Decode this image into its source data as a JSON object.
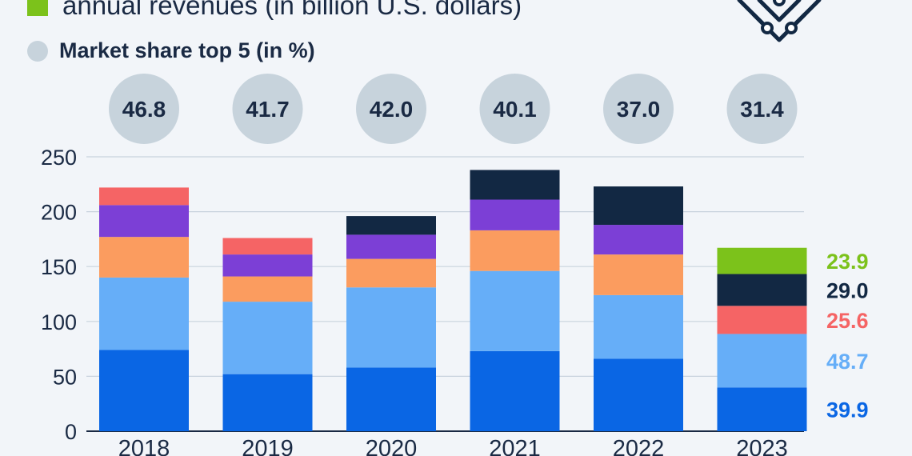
{
  "legend": {
    "revenues_label": "annual revenues (in billion U.S. dollars)",
    "share_label": "Market share top 5 (in %)",
    "revenues_color": "#7cc21b",
    "share_color": "#c7d3dc"
  },
  "logo_icon": "chip-circuit-icon",
  "chart_data": {
    "type": "bar",
    "stacked": true,
    "categories": [
      "2018",
      "2019",
      "2020",
      "2021",
      "2022",
      "2023"
    ],
    "ylim": [
      0,
      250
    ],
    "yticks": [
      0,
      50,
      100,
      150,
      200,
      250
    ],
    "grid": true,
    "series": [
      {
        "color": "#0a66e4",
        "values": [
          74,
          52,
          58,
          73,
          66,
          39.9
        ]
      },
      {
        "color": "#66aef8",
        "values": [
          66,
          66,
          73,
          73,
          58,
          48.7
        ]
      },
      {
        "color": "#fb9c5f",
        "values": [
          37,
          23,
          26,
          37,
          37,
          0
        ]
      },
      {
        "color": "#7c3fd6",
        "values": [
          29,
          20,
          22,
          28,
          27,
          0
        ]
      },
      {
        "color": "#f56465",
        "values": [
          16,
          15,
          0,
          0,
          0,
          25.6
        ]
      },
      {
        "color": "#122843",
        "values": [
          0,
          0,
          17,
          27,
          35,
          29.0
        ]
      },
      {
        "color": "#7cc21b",
        "values": [
          0,
          0,
          0,
          0,
          0,
          23.9
        ]
      }
    ],
    "market_share": [
      "46.8",
      "41.7",
      "42.0",
      "40.1",
      "37.0",
      "31.4"
    ],
    "end_labels": [
      {
        "text": "23.9",
        "color": "#7cc21b",
        "series": 6
      },
      {
        "text": "25.6",
        "color": "#f56465",
        "series": 4
      },
      {
        "text": "29.0",
        "color": "#122843",
        "series": 5
      },
      {
        "text": "48.7",
        "color": "#66aef8",
        "series": 1
      },
      {
        "text": "39.9",
        "color": "#0a66e4",
        "series": 0
      }
    ]
  }
}
